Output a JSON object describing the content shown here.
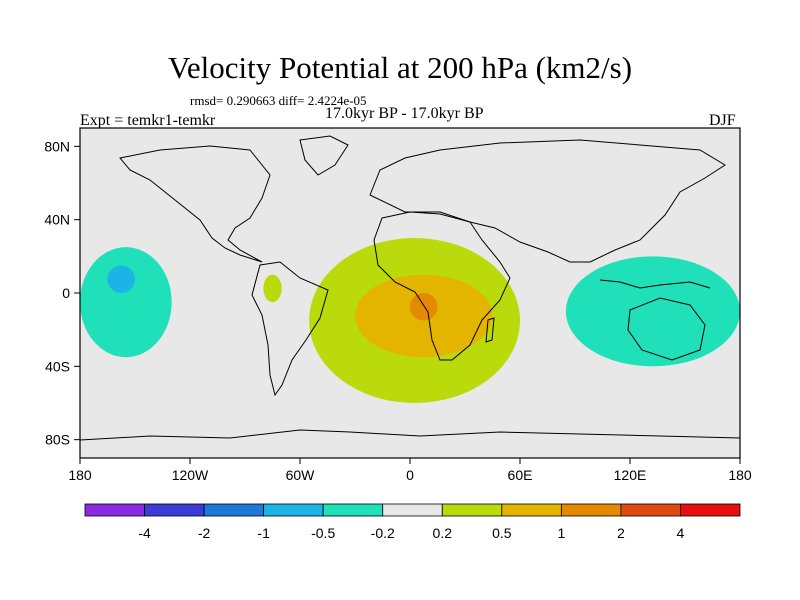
{
  "chart_data": {
    "type": "heatmap",
    "title": "Velocity Potential at 200 hPa (km2/s)",
    "stats_text": "rmsd= 0.290663 diff= 2.4224e-05",
    "periods_text": "17.0kyr BP - 17.0kyr BP",
    "experiment_text": "Expt = temkr1-temkr",
    "season_text": "DJF",
    "xlim": [
      -180,
      180
    ],
    "ylim": [
      -90,
      90
    ],
    "x_ticks": [
      "180",
      "120W",
      "60W",
      "0",
      "60E",
      "120E",
      "180"
    ],
    "y_ticks": [
      "80N",
      "40N",
      "0",
      "40S",
      "80S"
    ],
    "colorbar": {
      "colors": [
        "#8a2be2",
        "#3b3bd6",
        "#1e78d8",
        "#1cb4e6",
        "#1fe0b8",
        "#e8e8e8",
        "#bada0c",
        "#e3b400",
        "#e48a00",
        "#e04a10",
        "#e61010"
      ],
      "labels": [
        "-4",
        "-2",
        "-1",
        "-0.5",
        "-0.2",
        "0.2",
        "0.5",
        "1",
        "2",
        "4"
      ]
    },
    "regions": [
      {
        "level": "-0.5 to -0.2",
        "color": "#1fe0b8",
        "area": "central Pacific",
        "lon": [
          -180,
          -130
        ],
        "lat": [
          -35,
          25
        ]
      },
      {
        "level": "-1 to -0.5",
        "color": "#1cb4e6",
        "area": "central Pacific core",
        "lon": [
          -165,
          -150
        ],
        "lat": [
          0,
          15
        ]
      },
      {
        "level": "-0.5 to -0.2",
        "color": "#1fe0b8",
        "area": "Indian Ocean / Maritime Continent / W Pacific",
        "lon": [
          85,
          180
        ],
        "lat": [
          -40,
          20
        ]
      },
      {
        "level": "0.2 to 0.5",
        "color": "#bada0c",
        "area": "Atlantic / Africa",
        "lon": [
          -55,
          60
        ],
        "lat": [
          -60,
          30
        ]
      },
      {
        "level": "0.2 to 0.5",
        "color": "#bada0c",
        "area": "northern South America",
        "lon": [
          -80,
          -70
        ],
        "lat": [
          -5,
          10
        ]
      },
      {
        "level": "0.5 to 1",
        "color": "#e3b400",
        "area": "South Atlantic / southern Africa",
        "lon": [
          -30,
          45
        ],
        "lat": [
          -35,
          10
        ]
      },
      {
        "level": "1 to 2",
        "color": "#e48a00",
        "area": "central Africa",
        "lon": [
          0,
          15
        ],
        "lat": [
          -15,
          0
        ]
      }
    ]
  }
}
